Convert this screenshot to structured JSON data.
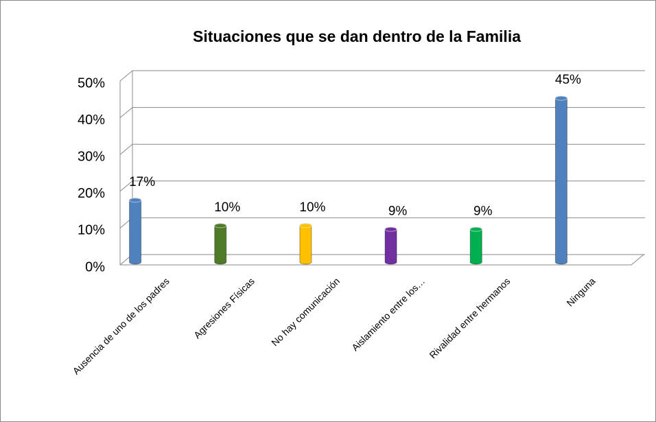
{
  "chart_data": {
    "type": "bar",
    "title": "Situaciones que se dan dentro de la Familia",
    "categories": [
      "Ausencia de uno de los padres",
      "Agresiones Físicas",
      "No hay  comunicación",
      "Aislamiento entre los…",
      "Rivalidad entre hermanos",
      "Ninguna"
    ],
    "values": [
      17,
      10,
      10,
      9,
      9,
      45
    ],
    "value_labels": [
      "17%",
      "10%",
      "10%",
      "9%",
      "9%",
      "45%"
    ],
    "colors": [
      "#4f81bd",
      "#4f7a28",
      "#ffc000",
      "#7030a0",
      "#00b050",
      "#4f81bd"
    ],
    "ylim": [
      0,
      50
    ],
    "yticks": [
      {
        "value": 0,
        "label": "0%"
      },
      {
        "value": 10,
        "label": "10%"
      },
      {
        "value": 20,
        "label": "20%"
      },
      {
        "value": 30,
        "label": "30%"
      },
      {
        "value": 40,
        "label": "40%"
      },
      {
        "value": 50,
        "label": "50%"
      }
    ],
    "grid": true
  }
}
